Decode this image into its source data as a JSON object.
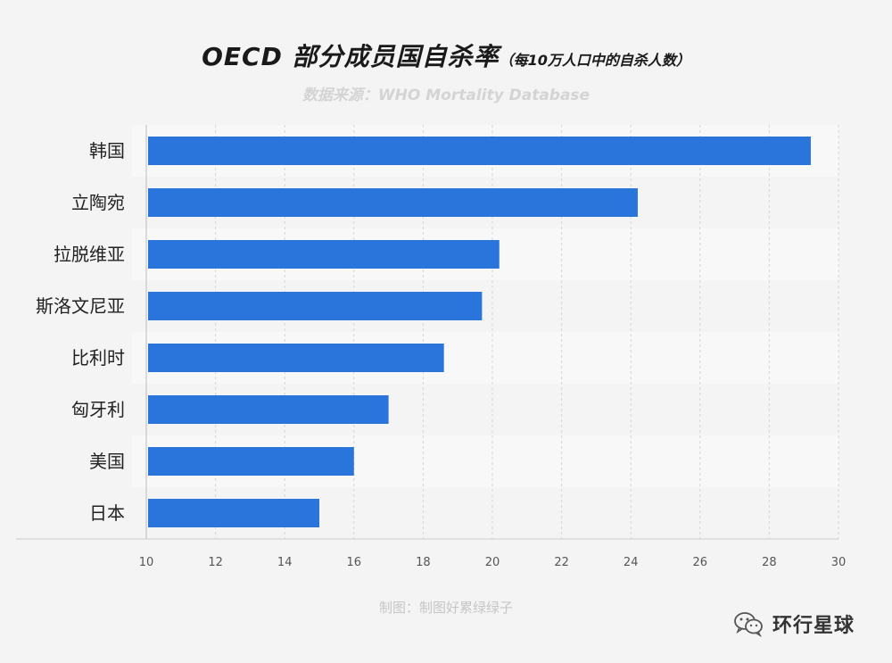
{
  "header": {
    "title": "OECD 部分成员国自杀率",
    "subtitle": "（每10万人口中的自杀人数）",
    "source": "数据来源：WHO Mortality Database"
  },
  "footer": {
    "credit": "制图：制图好累绿绿子",
    "watermark": "环行星球"
  },
  "colors": {
    "bar": "#2a75dc",
    "background": "#f4f4f4",
    "band": "#f8f8f8"
  },
  "chart_data": {
    "type": "bar",
    "orientation": "horizontal",
    "title": "OECD 部分成员国自杀率（每10万人口中的自杀人数）",
    "categories": [
      "韩国",
      "立陶宛",
      "拉脱维亚",
      "斯洛文尼亚",
      "比利时",
      "匈牙利",
      "美国",
      "日本"
    ],
    "values": [
      29.2,
      24.2,
      20.2,
      19.7,
      18.6,
      17.0,
      16.0,
      15.0
    ],
    "xlim": [
      10,
      30
    ],
    "xticks": [
      10,
      12,
      14,
      16,
      18,
      20,
      22,
      24,
      26,
      28,
      30
    ],
    "xlabel": "",
    "ylabel": "",
    "grid": "vertical dashed"
  }
}
